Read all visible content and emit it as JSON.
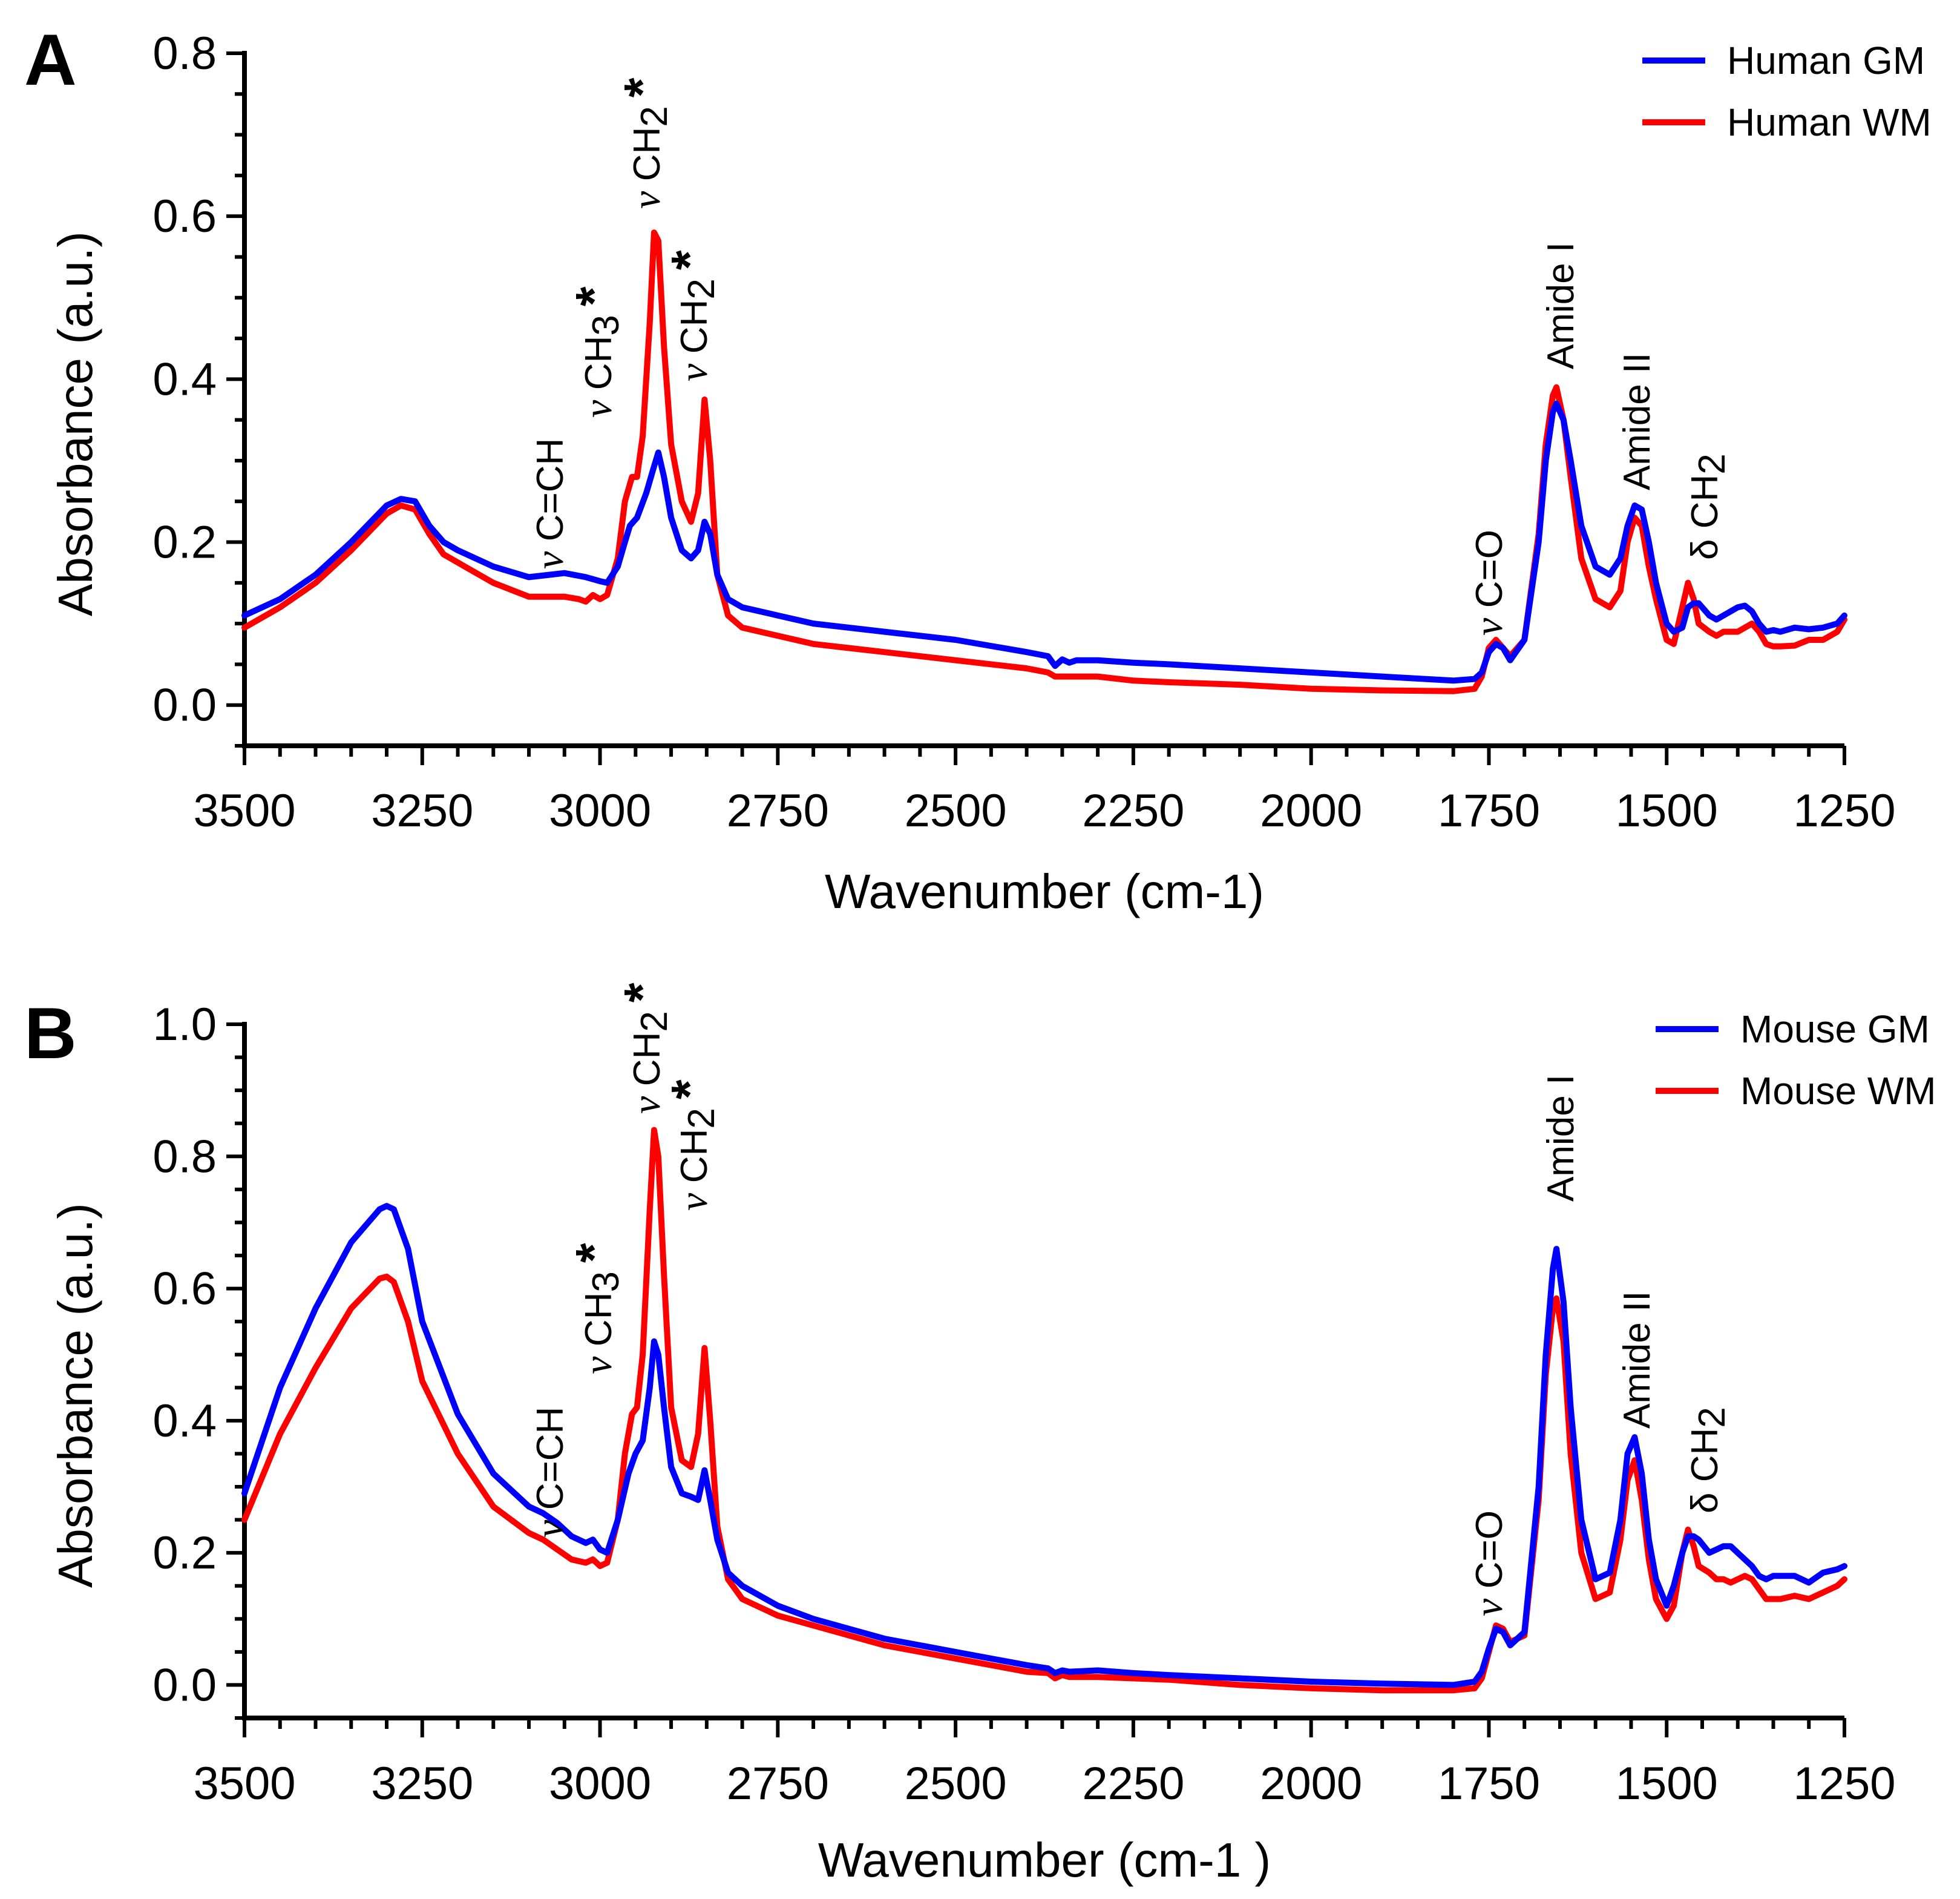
{
  "chart_data": [
    {
      "panel": "A",
      "type": "line",
      "xlabel": "Wavenumber (cm-1)",
      "ylabel": "Absorbance (a.u.)",
      "xlim": [
        3500,
        1250
      ],
      "ylim": [
        -0.05,
        0.8
      ],
      "xticks": [
        3500,
        3250,
        3000,
        2750,
        2500,
        2250,
        2000,
        1750,
        1500,
        1250
      ],
      "xtick_labels": [
        "3500",
        "3250",
        "3000",
        "2750",
        "2500",
        "2250",
        "2000",
        "1750",
        "1500",
        "1250"
      ],
      "yticks": [
        0.0,
        0.2,
        0.4,
        0.6,
        0.8
      ],
      "ytick_labels": [
        "0.0",
        "0.2",
        "0.4",
        "0.6",
        "0.8"
      ],
      "legend_position": "top-right",
      "series": [
        {
          "name": "Human GM",
          "color": "#0000ff",
          "x": [
            3500,
            3450,
            3400,
            3350,
            3300,
            3280,
            3260,
            3240,
            3220,
            3200,
            3150,
            3100,
            3070,
            3050,
            3020,
            3000,
            2990,
            2975,
            2965,
            2958,
            2948,
            2935,
            2925,
            2918,
            2910,
            2900,
            2885,
            2872,
            2862,
            2853,
            2845,
            2835,
            2820,
            2800,
            2750,
            2700,
            2600,
            2500,
            2400,
            2370,
            2360,
            2350,
            2340,
            2330,
            2300,
            2250,
            2200,
            2100,
            2000,
            1900,
            1800,
            1770,
            1760,
            1750,
            1740,
            1730,
            1720,
            1700,
            1680,
            1670,
            1660,
            1655,
            1645,
            1635,
            1620,
            1600,
            1580,
            1565,
            1555,
            1545,
            1535,
            1525,
            1515,
            1500,
            1490,
            1478,
            1470,
            1462,
            1455,
            1440,
            1430,
            1420,
            1410,
            1400,
            1390,
            1380,
            1370,
            1360,
            1350,
            1340,
            1320,
            1300,
            1280,
            1260,
            1250
          ],
          "y": [
            0.11,
            0.13,
            0.16,
            0.2,
            0.245,
            0.253,
            0.25,
            0.22,
            0.2,
            0.19,
            0.17,
            0.157,
            0.16,
            0.162,
            0.157,
            0.152,
            0.15,
            0.17,
            0.2,
            0.22,
            0.23,
            0.26,
            0.29,
            0.31,
            0.28,
            0.23,
            0.19,
            0.18,
            0.19,
            0.225,
            0.21,
            0.16,
            0.13,
            0.12,
            0.11,
            0.1,
            0.09,
            0.08,
            0.065,
            0.06,
            0.048,
            0.056,
            0.052,
            0.055,
            0.055,
            0.052,
            0.05,
            0.045,
            0.04,
            0.035,
            0.03,
            0.032,
            0.04,
            0.065,
            0.075,
            0.07,
            0.055,
            0.08,
            0.2,
            0.3,
            0.36,
            0.37,
            0.35,
            0.3,
            0.22,
            0.17,
            0.16,
            0.18,
            0.22,
            0.245,
            0.24,
            0.2,
            0.15,
            0.1,
            0.09,
            0.095,
            0.12,
            0.125,
            0.125,
            0.11,
            0.105,
            0.11,
            0.115,
            0.12,
            0.122,
            0.115,
            0.1,
            0.09,
            0.092,
            0.09,
            0.095,
            0.093,
            0.095,
            0.1,
            0.11
          ]
        },
        {
          "name": "Human WM",
          "color": "#ff0000",
          "x": [
            3500,
            3450,
            3400,
            3350,
            3300,
            3280,
            3260,
            3240,
            3220,
            3200,
            3150,
            3100,
            3070,
            3050,
            3030,
            3020,
            3010,
            3000,
            2990,
            2975,
            2965,
            2955,
            2948,
            2940,
            2930,
            2924,
            2918,
            2910,
            2900,
            2885,
            2872,
            2862,
            2853,
            2845,
            2835,
            2820,
            2800,
            2750,
            2700,
            2600,
            2500,
            2400,
            2370,
            2360,
            2350,
            2340,
            2300,
            2250,
            2200,
            2100,
            2000,
            1900,
            1800,
            1770,
            1760,
            1750,
            1740,
            1730,
            1720,
            1700,
            1680,
            1670,
            1660,
            1655,
            1645,
            1635,
            1620,
            1600,
            1580,
            1565,
            1555,
            1545,
            1535,
            1525,
            1515,
            1500,
            1490,
            1478,
            1470,
            1462,
            1455,
            1440,
            1430,
            1420,
            1410,
            1400,
            1390,
            1380,
            1370,
            1360,
            1350,
            1340,
            1320,
            1300,
            1280,
            1260,
            1250
          ],
          "y": [
            0.095,
            0.12,
            0.15,
            0.19,
            0.235,
            0.245,
            0.24,
            0.21,
            0.185,
            0.175,
            0.15,
            0.133,
            0.133,
            0.133,
            0.13,
            0.127,
            0.135,
            0.13,
            0.135,
            0.18,
            0.25,
            0.28,
            0.28,
            0.33,
            0.47,
            0.58,
            0.57,
            0.44,
            0.32,
            0.25,
            0.225,
            0.26,
            0.375,
            0.3,
            0.16,
            0.11,
            0.095,
            0.085,
            0.075,
            0.065,
            0.055,
            0.045,
            0.04,
            0.035,
            0.035,
            0.035,
            0.035,
            0.03,
            0.028,
            0.025,
            0.02,
            0.018,
            0.017,
            0.02,
            0.035,
            0.07,
            0.08,
            0.07,
            0.06,
            0.08,
            0.21,
            0.32,
            0.38,
            0.39,
            0.35,
            0.28,
            0.18,
            0.13,
            0.12,
            0.14,
            0.2,
            0.23,
            0.22,
            0.17,
            0.13,
            0.08,
            0.075,
            0.12,
            0.15,
            0.13,
            0.1,
            0.09,
            0.085,
            0.09,
            0.09,
            0.09,
            0.095,
            0.1,
            0.09,
            0.075,
            0.072,
            0.072,
            0.073,
            0.08,
            0.08,
            0.09,
            0.105
          ]
        }
      ],
      "annotations": [
        {
          "prefix": "ν",
          "text": "C=CH",
          "star": ""
        },
        {
          "prefix": "ν",
          "text": "CH3",
          "star": "*"
        },
        {
          "prefix": "ν",
          "text": "CH2",
          "star": "*"
        },
        {
          "prefix": "ν",
          "text": "CH2",
          "star": "*"
        },
        {
          "prefix": "ν",
          "text": "C=O",
          "star": ""
        },
        {
          "prefix": "",
          "text": "Amide I",
          "star": ""
        },
        {
          "prefix": "",
          "text": "Amide II",
          "star": ""
        },
        {
          "prefix": "δ",
          "text": "CH2",
          "star": ""
        }
      ]
    },
    {
      "panel": "B",
      "type": "line",
      "xlabel": "Wavenumber (cm-1 )",
      "ylabel": "Absorbance (a.u.)",
      "xlim": [
        3500,
        1250
      ],
      "ylim": [
        -0.05,
        1.0
      ],
      "xticks": [
        3500,
        3250,
        3000,
        2750,
        2500,
        2250,
        2000,
        1750,
        1500,
        1250
      ],
      "xtick_labels": [
        "3500",
        "3250",
        "3000",
        "2750",
        "2500",
        "2250",
        "2000",
        "1750",
        "1500",
        "1250"
      ],
      "yticks": [
        0.0,
        0.2,
        0.4,
        0.6,
        0.8,
        1.0
      ],
      "ytick_labels": [
        "0.0",
        "0.2",
        "0.4",
        "0.6",
        "0.8",
        "1.0"
      ],
      "legend_position": "top-right",
      "series": [
        {
          "name": "Mouse GM",
          "color": "#0000ff",
          "x": [
            3500,
            3450,
            3400,
            3350,
            3310,
            3300,
            3290,
            3270,
            3250,
            3200,
            3150,
            3100,
            3080,
            3060,
            3040,
            3020,
            3010,
            3000,
            2990,
            2975,
            2960,
            2950,
            2940,
            2930,
            2924,
            2918,
            2910,
            2900,
            2885,
            2872,
            2862,
            2853,
            2845,
            2835,
            2820,
            2800,
            2750,
            2700,
            2600,
            2500,
            2400,
            2370,
            2360,
            2350,
            2340,
            2300,
            2250,
            2200,
            2100,
            2000,
            1900,
            1800,
            1770,
            1760,
            1750,
            1740,
            1730,
            1720,
            1700,
            1680,
            1670,
            1660,
            1655,
            1645,
            1635,
            1620,
            1600,
            1580,
            1565,
            1555,
            1545,
            1535,
            1525,
            1515,
            1500,
            1490,
            1478,
            1470,
            1462,
            1455,
            1440,
            1430,
            1420,
            1410,
            1400,
            1390,
            1380,
            1370,
            1360,
            1350,
            1340,
            1320,
            1300,
            1280,
            1260,
            1250
          ],
          "y": [
            0.29,
            0.45,
            0.57,
            0.67,
            0.72,
            0.725,
            0.72,
            0.66,
            0.55,
            0.41,
            0.32,
            0.27,
            0.26,
            0.245,
            0.225,
            0.215,
            0.22,
            0.205,
            0.2,
            0.25,
            0.32,
            0.35,
            0.37,
            0.45,
            0.52,
            0.5,
            0.42,
            0.33,
            0.29,
            0.285,
            0.28,
            0.325,
            0.28,
            0.22,
            0.17,
            0.15,
            0.12,
            0.1,
            0.07,
            0.05,
            0.03,
            0.025,
            0.018,
            0.022,
            0.02,
            0.022,
            0.018,
            0.015,
            0.01,
            0.005,
            0.002,
            0.0,
            0.005,
            0.02,
            0.055,
            0.085,
            0.08,
            0.06,
            0.08,
            0.3,
            0.5,
            0.63,
            0.66,
            0.58,
            0.42,
            0.25,
            0.16,
            0.17,
            0.25,
            0.35,
            0.375,
            0.32,
            0.22,
            0.16,
            0.12,
            0.15,
            0.2,
            0.225,
            0.225,
            0.22,
            0.2,
            0.205,
            0.21,
            0.21,
            0.2,
            0.19,
            0.18,
            0.165,
            0.16,
            0.165,
            0.165,
            0.165,
            0.155,
            0.17,
            0.175,
            0.18
          ]
        },
        {
          "name": "Mouse WM",
          "color": "#ff0000",
          "x": [
            3500,
            3450,
            3400,
            3350,
            3310,
            3300,
            3290,
            3270,
            3250,
            3200,
            3150,
            3100,
            3080,
            3060,
            3040,
            3020,
            3010,
            3000,
            2990,
            2975,
            2965,
            2955,
            2948,
            2940,
            2930,
            2924,
            2918,
            2910,
            2900,
            2885,
            2872,
            2862,
            2853,
            2845,
            2835,
            2820,
            2800,
            2750,
            2700,
            2600,
            2500,
            2400,
            2370,
            2360,
            2350,
            2340,
            2300,
            2250,
            2200,
            2100,
            2000,
            1900,
            1800,
            1770,
            1760,
            1750,
            1740,
            1730,
            1720,
            1700,
            1680,
            1670,
            1660,
            1655,
            1645,
            1635,
            1620,
            1600,
            1580,
            1565,
            1555,
            1545,
            1535,
            1525,
            1515,
            1500,
            1490,
            1478,
            1470,
            1462,
            1455,
            1440,
            1430,
            1420,
            1410,
            1400,
            1390,
            1380,
            1370,
            1360,
            1350,
            1340,
            1320,
            1300,
            1280,
            1260,
            1250
          ],
          "y": [
            0.25,
            0.38,
            0.48,
            0.57,
            0.615,
            0.618,
            0.61,
            0.55,
            0.46,
            0.35,
            0.27,
            0.23,
            0.22,
            0.205,
            0.19,
            0.185,
            0.19,
            0.18,
            0.185,
            0.25,
            0.35,
            0.41,
            0.42,
            0.5,
            0.72,
            0.84,
            0.8,
            0.62,
            0.42,
            0.34,
            0.33,
            0.38,
            0.51,
            0.4,
            0.24,
            0.16,
            0.13,
            0.105,
            0.09,
            0.06,
            0.04,
            0.02,
            0.018,
            0.01,
            0.015,
            0.012,
            0.012,
            0.01,
            0.008,
            0.0,
            -0.005,
            -0.008,
            -0.008,
            -0.005,
            0.01,
            0.05,
            0.09,
            0.085,
            0.065,
            0.075,
            0.28,
            0.47,
            0.57,
            0.585,
            0.52,
            0.35,
            0.2,
            0.13,
            0.14,
            0.22,
            0.31,
            0.34,
            0.28,
            0.19,
            0.13,
            0.1,
            0.12,
            0.2,
            0.235,
            0.21,
            0.18,
            0.17,
            0.16,
            0.16,
            0.155,
            0.16,
            0.165,
            0.16,
            0.145,
            0.13,
            0.13,
            0.13,
            0.135,
            0.13,
            0.14,
            0.15,
            0.16
          ]
        }
      ],
      "annotations": [
        {
          "prefix": "ν",
          "text": "C=CH",
          "star": ""
        },
        {
          "prefix": "ν",
          "text": "CH3",
          "star": "*"
        },
        {
          "prefix": "ν",
          "text": "CH2",
          "star": "*"
        },
        {
          "prefix": "ν",
          "text": "CH2",
          "star": "*"
        },
        {
          "prefix": "ν",
          "text": "C=O",
          "star": ""
        },
        {
          "prefix": "",
          "text": "Amide I",
          "star": ""
        },
        {
          "prefix": "",
          "text": "Amide II",
          "star": ""
        },
        {
          "prefix": "δ",
          "text": "CH2",
          "star": ""
        }
      ]
    }
  ]
}
